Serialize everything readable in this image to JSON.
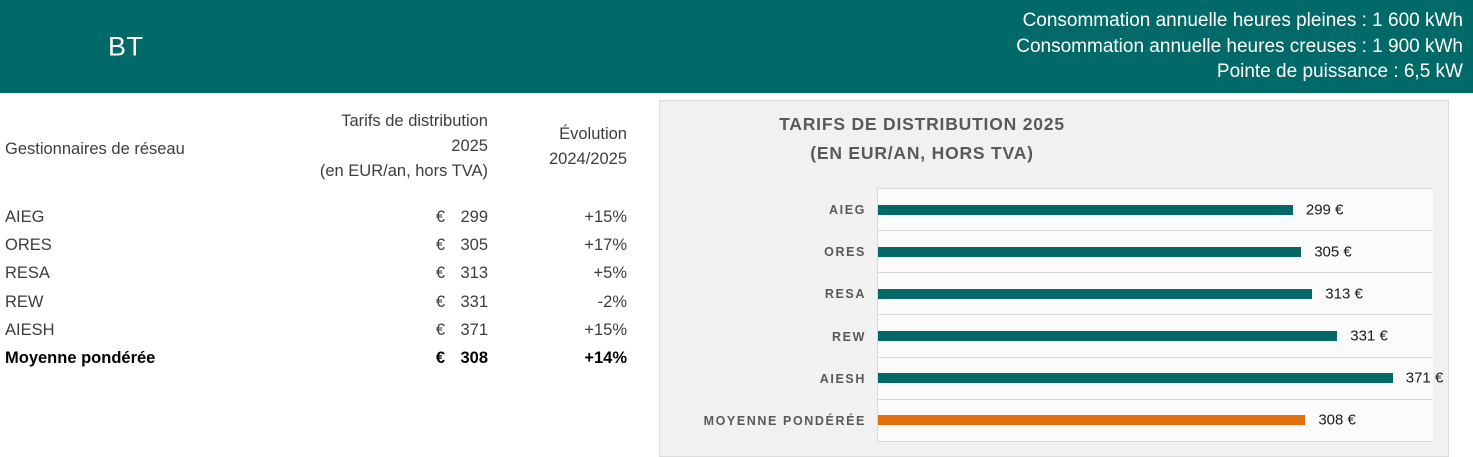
{
  "header": {
    "tag": "BT",
    "info_lines": [
      "Consommation annuelle heures pleines : 1 600 kWh",
      "Consommation annuelle heures creuses : 1 900 kWh",
      "Pointe de puissance : 6,5 kW"
    ]
  },
  "table": {
    "col1_header": "Gestionnaires de réseau",
    "col2_header_lines": [
      "Tarifs de distribution",
      "2025",
      "(en EUR/an, hors TVA)"
    ],
    "col3_header_lines": [
      "Évolution",
      "2024/2025"
    ],
    "currency_symbol": "€",
    "rows": [
      {
        "name": "AIEG",
        "tariff": "299",
        "evolution": "+15%"
      },
      {
        "name": "ORES",
        "tariff": "305",
        "evolution": "+17%"
      },
      {
        "name": "RESA",
        "tariff": "313",
        "evolution": "+5%"
      },
      {
        "name": "REW",
        "tariff": "331",
        "evolution": "-2%"
      },
      {
        "name": "AIESH",
        "tariff": "371",
        "evolution": "+15%"
      },
      {
        "name": "Moyenne pondérée",
        "tariff": "308",
        "evolution": "+14%"
      }
    ]
  },
  "chart_data": {
    "type": "bar",
    "orientation": "horizontal",
    "title_lines": [
      "TARIFS DE DISTRIBUTION 2025",
      "(EN EUR/AN, HORS TVA)"
    ],
    "categories": [
      "AIEG",
      "ORES",
      "RESA",
      "REW",
      "AIESH",
      "MOYENNE PONDÉRÉE"
    ],
    "values": [
      299,
      305,
      313,
      331,
      371,
      308
    ],
    "value_labels": [
      "299 €",
      "305 €",
      "313 €",
      "331 €",
      "371 €",
      "308 €"
    ],
    "xlim": [
      0,
      400
    ],
    "grid": "category-separators",
    "legend": "none",
    "bar_color": "#056766",
    "highlight_color": "#e46d0d",
    "highlight_index": 5
  },
  "colors": {
    "header_background": "#016968",
    "panel_background": "#f1f1f2",
    "plot_background": "#fbfbfb",
    "gridline": "#d9d9d9",
    "chart_text": "#595959",
    "teal_accent": "#056766",
    "orange_accent": "#e46d0d"
  }
}
